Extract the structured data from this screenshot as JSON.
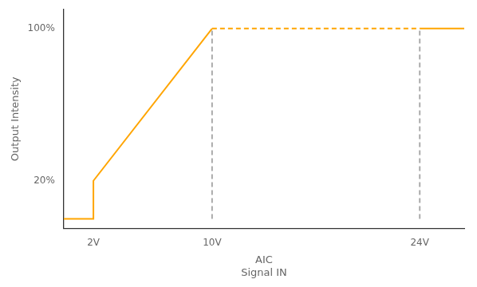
{
  "chart_data": {
    "type": "line",
    "y_label": "Output Intensity",
    "x_label": "AIC\nSignal IN",
    "series": [
      {
        "x": [
          0,
          2,
          2,
          10
        ],
        "values": [
          0,
          0,
          20,
          100
        ],
        "color": "#FFA500",
        "line_style": "solid"
      },
      {
        "x": [
          10,
          24
        ],
        "values": [
          100,
          100
        ],
        "color": "#FFA500",
        "line_style": "dashed"
      },
      {
        "x": [
          24,
          27
        ],
        "values": [
          100,
          100
        ],
        "color": "#FFA500",
        "line_style": "solid"
      },
      {
        "x": [
          10,
          10
        ],
        "values": [
          0,
          100
        ],
        "color": "#AAAAAA",
        "line_style": "dashed"
      },
      {
        "x": [
          24,
          24
        ],
        "values": [
          0,
          100
        ],
        "color": "#AAAAAA",
        "line_style": "dashed"
      }
    ],
    "xlim": [
      0,
      27
    ],
    "xticks": [
      {
        "value": 2,
        "label": "2V"
      },
      {
        "value": 10,
        "label": "10V"
      },
      {
        "value": 24,
        "label": "24V"
      }
    ],
    "ylim": [
      -5,
      110
    ],
    "yticks": [
      {
        "value": 20,
        "label": "20%"
      },
      {
        "value": 100,
        "label": "100%"
      }
    ],
    "grid": false
  }
}
